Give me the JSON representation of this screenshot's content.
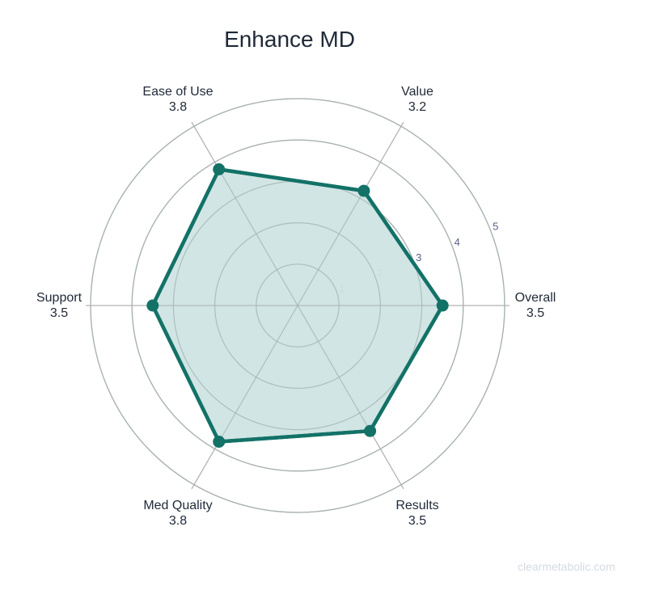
{
  "title": "Enhance MD",
  "watermark": "clearmetabolic.com",
  "colors": {
    "line": "#137268",
    "fill": "#cfe4e3",
    "grid": "#b4b4b4",
    "text": "#1f2937",
    "tick": "#5b5f8a",
    "watermark": "#d4dae3"
  },
  "chart_data": {
    "type": "radar",
    "title": "Enhance MD",
    "categories": [
      "Overall",
      "Value",
      "Ease of Use",
      "Support",
      "Med Quality",
      "Results"
    ],
    "values": [
      3.5,
      3.2,
      3.8,
      3.5,
      3.8,
      3.5
    ],
    "value_labels": [
      "3.5",
      "3.2",
      "3.8",
      "3.5",
      "3.8",
      "3.5"
    ],
    "radial_range": [
      0,
      5
    ],
    "radial_ticks": [
      1,
      2,
      3,
      4,
      5
    ],
    "grid": true,
    "legend": false
  }
}
